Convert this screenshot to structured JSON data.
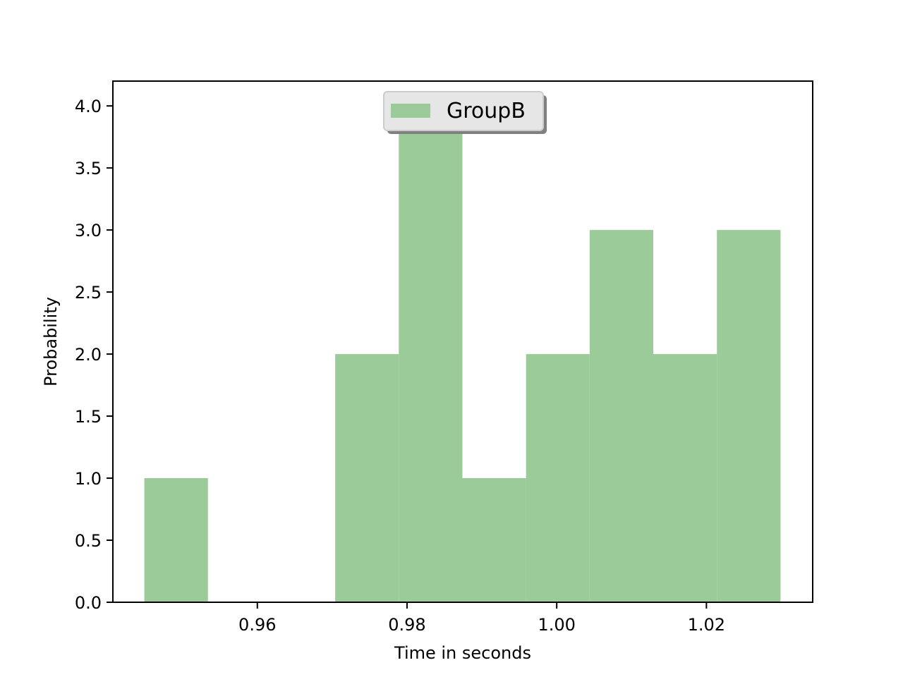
{
  "chart_data": {
    "type": "bar",
    "title": "",
    "xlabel": "Time in seconds",
    "ylabel": "Probability",
    "bins": [
      {
        "x0": 0.9449,
        "x1": 0.9534,
        "value": 1
      },
      {
        "x0": 0.9534,
        "x1": 0.9619,
        "value": 0
      },
      {
        "x0": 0.9619,
        "x1": 0.9704,
        "value": 0
      },
      {
        "x0": 0.9704,
        "x1": 0.9789,
        "value": 2
      },
      {
        "x0": 0.9789,
        "x1": 0.9874,
        "value": 4
      },
      {
        "x0": 0.9874,
        "x1": 0.9959,
        "value": 1
      },
      {
        "x0": 0.9959,
        "x1": 1.0044,
        "value": 2
      },
      {
        "x0": 1.0044,
        "x1": 1.0129,
        "value": 3
      },
      {
        "x0": 1.0129,
        "x1": 1.0214,
        "value": 2
      },
      {
        "x0": 1.0214,
        "x1": 1.0299,
        "value": 3
      }
    ],
    "series": [
      {
        "name": "GroupB",
        "color": "#9ACB98"
      }
    ],
    "xlim": [
      0.9407,
      1.0342
    ],
    "ylim": [
      0,
      4.2
    ],
    "xticks": [
      0.96,
      0.98,
      1.0,
      1.02
    ],
    "xtick_labels": [
      "0.96",
      "0.98",
      "1.00",
      "1.02"
    ],
    "yticks": [
      0,
      0.5,
      1,
      1.5,
      2,
      2.5,
      3,
      3.5,
      4
    ],
    "ytick_labels": [
      "0.0",
      "0.5",
      "1.0",
      "1.5",
      "2.0",
      "2.5",
      "3.0",
      "3.5",
      "4.0"
    ],
    "legend": {
      "position": "upper center",
      "shadow": true,
      "background": "#E6E6E6",
      "border": "#CCCCCC"
    },
    "grid": false
  }
}
